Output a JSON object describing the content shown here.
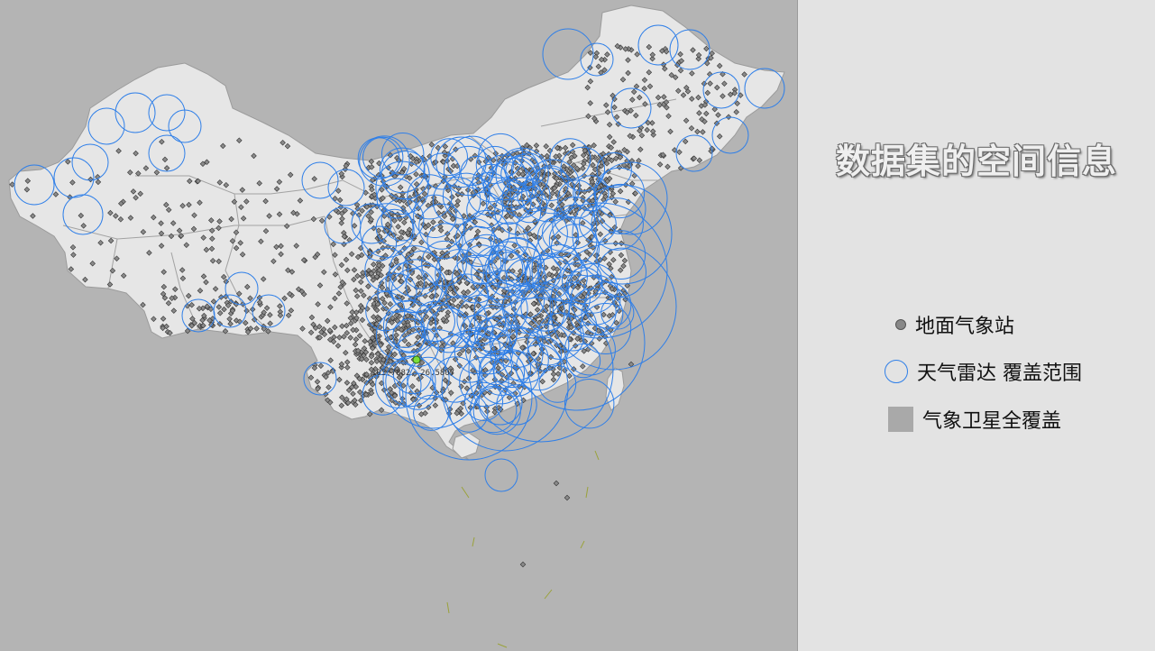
{
  "panel": {
    "title": "数据集的空间信息",
    "legend": [
      {
        "symbol": "gray-dot",
        "label": "地面气象站"
      },
      {
        "symbol": "blue-ring",
        "label": "天气雷达 覆盖范围"
      },
      {
        "symbol": "gray-square",
        "label": "气象卫星全覆盖"
      }
    ]
  },
  "map": {
    "marker_label": "105.7882, 26.5807"
  },
  "colors": {
    "background": "#b4b4b4",
    "land": "#e6e6e6",
    "border": "#9b9b9b",
    "station": "#8a8a8a",
    "radar": "#2f7fe8",
    "marker": "#7dde3a",
    "panel": "#e3e3e3"
  }
}
